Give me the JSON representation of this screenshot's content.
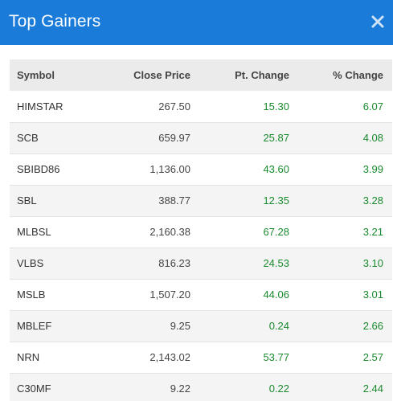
{
  "dialog": {
    "title": "Top Gainers"
  },
  "table": {
    "headers": {
      "symbol": "Symbol",
      "close_price": "Close Price",
      "pt_change": "Pt. Change",
      "pct_change": "% Change"
    },
    "rows": [
      {
        "symbol": "HIMSTAR",
        "close_price": "267.50",
        "pt_change": "15.30",
        "pct_change": "6.07"
      },
      {
        "symbol": "SCB",
        "close_price": "659.97",
        "pt_change": "25.87",
        "pct_change": "4.08"
      },
      {
        "symbol": "SBIBD86",
        "close_price": "1,136.00",
        "pt_change": "43.60",
        "pct_change": "3.99"
      },
      {
        "symbol": "SBL",
        "close_price": "388.77",
        "pt_change": "12.35",
        "pct_change": "3.28"
      },
      {
        "symbol": "MLBSL",
        "close_price": "2,160.38",
        "pt_change": "67.28",
        "pct_change": "3.21"
      },
      {
        "symbol": "VLBS",
        "close_price": "816.23",
        "pt_change": "24.53",
        "pct_change": "3.10"
      },
      {
        "symbol": "MSLB",
        "close_price": "1,507.20",
        "pt_change": "44.06",
        "pct_change": "3.01"
      },
      {
        "symbol": "MBLEF",
        "close_price": "9.25",
        "pt_change": "0.24",
        "pct_change": "2.66"
      },
      {
        "symbol": "NRN",
        "close_price": "2,143.02",
        "pt_change": "53.77",
        "pct_change": "2.57"
      },
      {
        "symbol": "C30MF",
        "close_price": "9.22",
        "pt_change": "0.22",
        "pct_change": "2.44"
      }
    ]
  },
  "colors": {
    "header_bg": "#1a7cd8",
    "gain_text": "#1a8a2e",
    "table_header_bg": "#ebebeb",
    "row_alt_bg": "#f4f4f4"
  },
  "icons": {
    "close": "close-icon"
  }
}
